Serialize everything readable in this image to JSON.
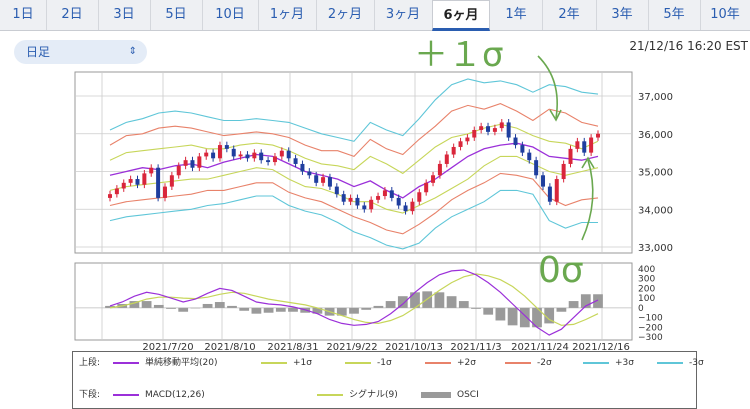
{
  "tabs": [
    {
      "label": "1日"
    },
    {
      "label": "2日"
    },
    {
      "label": "3日"
    },
    {
      "label": "5日"
    },
    {
      "label": "10日"
    },
    {
      "label": "1ヶ月"
    },
    {
      "label": "2ヶ月"
    },
    {
      "label": "3ヶ月"
    },
    {
      "label": "6ヶ月",
      "active": true
    },
    {
      "label": "1年"
    },
    {
      "label": "2年"
    },
    {
      "label": "3年"
    },
    {
      "label": "5年"
    },
    {
      "label": "10年"
    }
  ],
  "selector": {
    "value": "日足"
  },
  "timestamp": "21/12/16 16:20 EST",
  "annotations": {
    "plus1sigma": "＋１σ",
    "zero_sigma": "0σ"
  },
  "colors": {
    "sma": "#9b30d9",
    "p1": "#c7d65a",
    "m1": "#c7d65a",
    "p2": "#e8826a",
    "m2": "#e8826a",
    "p3": "#5fc6d8",
    "m3": "#5fc6d8",
    "up": "#d9263b",
    "down": "#1f3e9e",
    "macd": "#9b30d9",
    "signal": "#c7d65a",
    "osci": "#9a9a9a",
    "annotation": "#6aa84f"
  },
  "legend": {
    "upper_label": "上段:",
    "lower_label": "下段:",
    "upper_items": [
      {
        "label": "単純移動平均(20)",
        "color_key": "sma"
      },
      {
        "label": "+1σ",
        "color_key": "p1"
      },
      {
        "label": "-1σ",
        "color_key": "m1"
      },
      {
        "label": "+2σ",
        "color_key": "p2"
      },
      {
        "label": "-2σ",
        "color_key": "m2"
      },
      {
        "label": "+3σ",
        "color_key": "p3"
      },
      {
        "label": "-3σ",
        "color_key": "m3"
      }
    ],
    "lower_items": [
      {
        "label": "MACD(12,26)",
        "color_key": "macd"
      },
      {
        "label": "シグナル(9)",
        "color_key": "signal"
      },
      {
        "label": "OSCI",
        "color_key": "osci",
        "box": true
      }
    ]
  },
  "chart_data": [
    {
      "type": "candlestick",
      "panel": "price",
      "ylim": [
        33000,
        37000
      ],
      "y_ticks": [
        {
          "value": 33000,
          "label": "33,000"
        },
        {
          "value": 34000,
          "label": "34,000"
        },
        {
          "value": 35000,
          "label": "35,000"
        },
        {
          "value": 36000,
          "label": "36,000"
        },
        {
          "value": 37000,
          "label": "37,000"
        }
      ],
      "x_tick_labels": [
        "2021/7/20",
        "2021/8/10",
        "2021/8/31",
        "2021/9/22",
        "2021/10/13",
        "2021/11/3",
        "2021/11/24",
        "2021/12/16"
      ],
      "grid": true,
      "sma20": [
        34900,
        35000,
        35100,
        35050,
        35150,
        35200,
        35100,
        35250,
        35350,
        35450,
        35400,
        35200,
        35000,
        34900,
        34800,
        34600,
        34750,
        34500,
        34300,
        34600,
        34800,
        35100,
        35400,
        35600,
        35700,
        35750,
        35650,
        35400,
        35350,
        35300,
        35400
      ],
      "bands": {
        "p1": [
          35300,
          35500,
          35550,
          35600,
          35650,
          35700,
          35600,
          35600,
          35700,
          35750,
          35700,
          35550,
          35350,
          35200,
          35150,
          35050,
          35400,
          35200,
          34950,
          35300,
          35650,
          35900,
          36000,
          36150,
          36250,
          36150,
          35950,
          35800,
          35750,
          35600,
          35800
        ],
        "m1": [
          34500,
          34600,
          34650,
          34700,
          34750,
          34800,
          34800,
          34900,
          35000,
          35100,
          35050,
          34800,
          34600,
          34550,
          34400,
          34200,
          34200,
          34000,
          33900,
          34100,
          34300,
          34550,
          34800,
          35150,
          35400,
          35400,
          35200,
          35000,
          34900,
          35000,
          35100
        ],
        "p2": [
          35700,
          35950,
          36000,
          36150,
          36200,
          36150,
          36050,
          35950,
          36000,
          36050,
          36000,
          35900,
          35700,
          35550,
          35550,
          35400,
          35850,
          35600,
          35450,
          35850,
          36200,
          36600,
          36750,
          36650,
          36800,
          36600,
          36350,
          36650,
          36550,
          36300,
          36200
        ],
        "m2": [
          34100,
          34200,
          34250,
          34300,
          34350,
          34400,
          34500,
          34500,
          34600,
          34700,
          34700,
          34450,
          34300,
          34200,
          34000,
          33800,
          33650,
          33450,
          33350,
          33600,
          33900,
          34250,
          34500,
          34700,
          34950,
          34900,
          34800,
          34300,
          34100,
          34250,
          34300
        ],
        "p3": [
          36100,
          36300,
          36400,
          36550,
          36600,
          36550,
          36450,
          36350,
          36350,
          36400,
          36350,
          36300,
          36150,
          36000,
          35900,
          35800,
          36300,
          36100,
          35950,
          36400,
          36900,
          37300,
          37450,
          37350,
          37400,
          37300,
          37100,
          37300,
          37250,
          37100,
          37050
        ],
        "m3": [
          33700,
          33800,
          33850,
          33900,
          33950,
          34000,
          34100,
          34150,
          34250,
          34350,
          34350,
          34100,
          33950,
          33850,
          33650,
          33400,
          33250,
          33050,
          32950,
          33100,
          33500,
          33800,
          34000,
          34200,
          34500,
          34500,
          34400,
          33700,
          33500,
          33650,
          33650
        ]
      },
      "closes": [
        34400,
        34550,
        34700,
        34800,
        34650,
        34950,
        35100,
        34300,
        34600,
        34900,
        35150,
        35300,
        35100,
        35400,
        35500,
        35350,
        35700,
        35600,
        35400,
        35450,
        35350,
        35500,
        35300,
        35250,
        35400,
        35550,
        35350,
        35200,
        35000,
        34900,
        34700,
        34850,
        34600,
        34400,
        34200,
        34300,
        34100,
        34000,
        34250,
        34350,
        34500,
        34300,
        34100,
        33950,
        34200,
        34450,
        34700,
        34900,
        35200,
        35450,
        35650,
        35800,
        35900,
        36100,
        36200,
        36050,
        36150,
        36300,
        35900,
        35700,
        35500,
        35300,
        34900,
        34600,
        34200,
        34800,
        35200,
        35600,
        35800,
        35500,
        35900,
        36000
      ],
      "opens": [
        34300,
        34400,
        34550,
        34700,
        34800,
        34650,
        34950,
        35100,
        34300,
        34600,
        34900,
        35150,
        35300,
        35100,
        35400,
        35500,
        35350,
        35700,
        35600,
        35400,
        35450,
        35350,
        35500,
        35300,
        35250,
        35400,
        35550,
        35350,
        35200,
        35000,
        34900,
        34700,
        34850,
        34600,
        34400,
        34200,
        34300,
        34100,
        34000,
        34250,
        34350,
        34500,
        34300,
        34100,
        33950,
        34200,
        34450,
        34700,
        34900,
        35200,
        35450,
        35650,
        35800,
        35900,
        36100,
        36200,
        36050,
        36150,
        36300,
        35900,
        35700,
        35500,
        35300,
        34900,
        34600,
        34200,
        34800,
        35200,
        35600,
        35800,
        35500,
        35900
      ]
    },
    {
      "type": "macd",
      "panel": "oscillator",
      "ylim": [
        -300,
        400
      ],
      "y_ticks": [
        {
          "value": 400,
          "label": "400"
        },
        {
          "value": 300,
          "label": "300"
        },
        {
          "value": 200,
          "label": "200"
        },
        {
          "value": 100,
          "label": "100"
        },
        {
          "value": 0,
          "label": "0"
        },
        {
          "value": -100,
          "label": "−100"
        },
        {
          "value": -200,
          "label": "−200"
        },
        {
          "value": -300,
          "label": "−300"
        }
      ],
      "macd": [
        20,
        60,
        120,
        160,
        140,
        100,
        60,
        90,
        150,
        200,
        180,
        120,
        60,
        40,
        30,
        10,
        -20,
        -60,
        -120,
        -160,
        -180,
        -170,
        -140,
        -60,
        40,
        160,
        260,
        340,
        380,
        390,
        340,
        260,
        160,
        40,
        -80,
        -200,
        -280,
        -220,
        -100,
        20,
        80
      ],
      "signal": [
        0,
        20,
        50,
        90,
        110,
        110,
        100,
        95,
        110,
        140,
        160,
        150,
        120,
        90,
        70,
        50,
        30,
        0,
        -40,
        -80,
        -120,
        -150,
        -160,
        -130,
        -80,
        0,
        90,
        180,
        260,
        320,
        350,
        330,
        290,
        220,
        120,
        0,
        -120,
        -180,
        -170,
        -120,
        -60
      ],
      "osci": [
        20,
        40,
        70,
        70,
        30,
        -10,
        -40,
        -5,
        40,
        60,
        20,
        -30,
        -60,
        -50,
        -40,
        -40,
        -50,
        -60,
        -80,
        -80,
        -60,
        -20,
        20,
        70,
        120,
        160,
        170,
        160,
        120,
        70,
        -10,
        -70,
        -130,
        -180,
        -200,
        -200,
        -160,
        -40,
        70,
        140,
        140
      ]
    }
  ]
}
